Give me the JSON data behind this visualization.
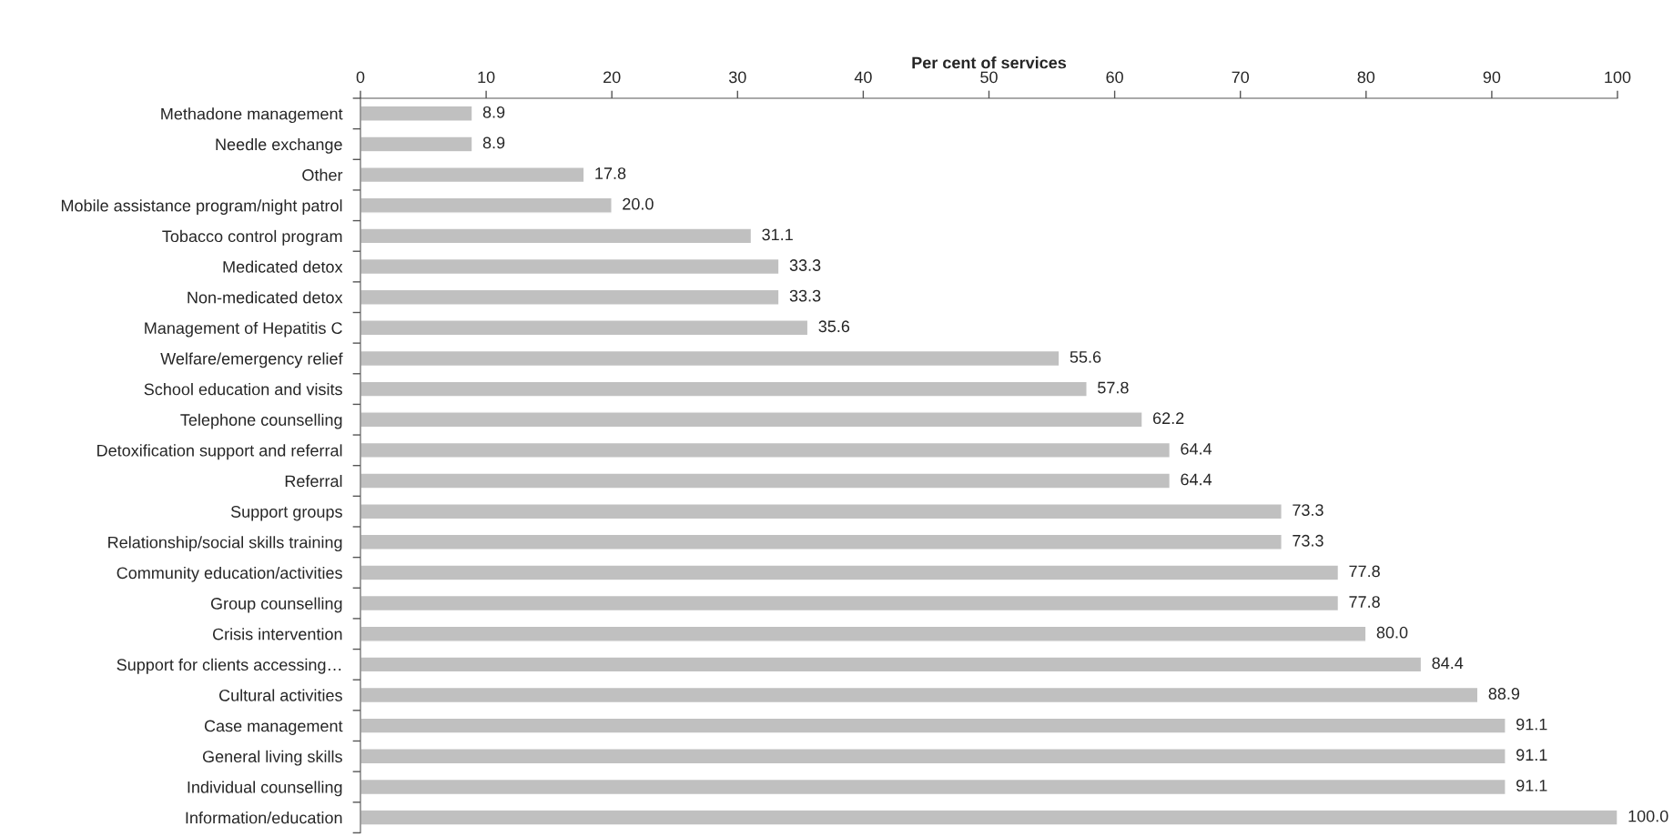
{
  "chart_data": {
    "type": "bar",
    "orientation": "horizontal",
    "xlabel": "Per cent of services",
    "categories": [
      "Methadone management",
      "Needle exchange",
      "Other",
      "Mobile assistance program/night patrol",
      "Tobacco control program",
      "Medicated detox",
      "Non-medicated detox",
      "Management of Hepatitis C",
      "Welfare/emergency relief",
      "School education and visits",
      "Telephone counselling",
      "Detoxification support and referral",
      "Referral",
      "Support groups",
      "Relationship/social skills training",
      "Community education/activities",
      "Group counselling",
      "Crisis intervention",
      "Support for clients accessing…",
      "Cultural activities",
      "Case management",
      "General living skills",
      "Individual counselling",
      "Information/education"
    ],
    "values": [
      8.9,
      8.9,
      17.8,
      20.0,
      31.1,
      33.3,
      33.3,
      35.6,
      55.6,
      57.8,
      62.2,
      64.4,
      64.4,
      73.3,
      73.3,
      77.8,
      77.8,
      80.0,
      84.4,
      88.9,
      91.1,
      91.1,
      91.1,
      100.0
    ],
    "value_labels": [
      "8.9",
      "8.9",
      "17.8",
      "20.0",
      "31.1",
      "33.3",
      "33.3",
      "35.6",
      "55.6",
      "57.8",
      "62.2",
      "64.4",
      "64.4",
      "73.3",
      "73.3",
      "77.8",
      "77.8",
      "80.0",
      "84.4",
      "88.9",
      "91.1",
      "91.1",
      "91.1",
      "100.0"
    ],
    "color": "#c0c0c0",
    "xlim": [
      0,
      100
    ],
    "xticks": [
      0,
      10,
      20,
      30,
      40,
      50,
      60,
      70,
      80,
      90,
      100
    ],
    "grid": false
  }
}
